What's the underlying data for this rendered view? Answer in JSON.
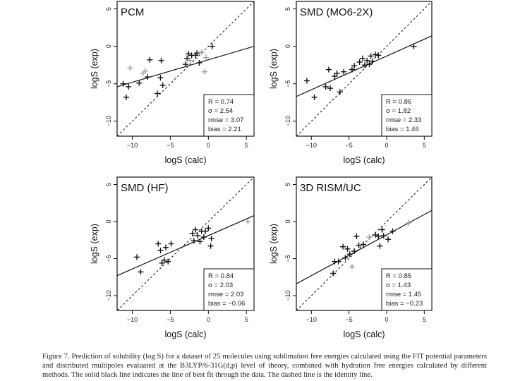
{
  "figure": {
    "caption_label": "Figure 7.",
    "caption_text": "Prediction of solubility (log S) for a dataset of 25 molecules using sublimation free energies calculated using the FIT potential parameters and distributed multipoles evaluated at the B3LYP/6-31G(d,p) level of theory, combined with hydration free energies calculated by different methods. The solid black line indicates the line of best fit through the data. The dashed line is the identity line."
  },
  "chart_data": [
    {
      "type": "scatter",
      "title": "PCM",
      "xlabel": "logS (calc)",
      "ylabel": "logS (exp)",
      "xlim": [
        -12,
        6
      ],
      "ylim": [
        -12,
        6
      ],
      "xticks": [
        -10,
        -5,
        0,
        5
      ],
      "yticks": [
        5,
        0,
        -5,
        -10
      ],
      "fit": {
        "slope": 0.3,
        "intercept": -1.8
      },
      "identity_line": true,
      "stats": [
        {
          "label": "R",
          "value": "0.74"
        },
        {
          "label": "σ",
          "value": "2.54"
        },
        {
          "label": "rmse",
          "value": "3.07"
        },
        {
          "label": "bias",
          "value": "2.21"
        }
      ],
      "points": [
        {
          "x": -11.2,
          "y": -5.0,
          "g": false
        },
        {
          "x": -10.8,
          "y": -6.8,
          "g": false
        },
        {
          "x": -10.5,
          "y": -5.4,
          "g": false
        },
        {
          "x": -10.3,
          "y": -2.9,
          "g": true
        },
        {
          "x": -9.1,
          "y": -4.9,
          "g": false
        },
        {
          "x": -8.6,
          "y": -3.6,
          "g": true
        },
        {
          "x": -8.3,
          "y": -3.3,
          "g": true
        },
        {
          "x": -8.0,
          "y": -4.1,
          "g": false
        },
        {
          "x": -7.7,
          "y": -1.8,
          "g": false
        },
        {
          "x": -6.7,
          "y": -6.3,
          "g": false
        },
        {
          "x": -6.3,
          "y": -4.2,
          "g": false
        },
        {
          "x": -6.2,
          "y": -1.9,
          "g": false
        },
        {
          "x": -6.0,
          "y": -5.2,
          "g": false
        },
        {
          "x": -3.0,
          "y": -2.4,
          "g": false
        },
        {
          "x": -2.8,
          "y": -1.6,
          "g": false
        },
        {
          "x": -2.6,
          "y": -1.0,
          "g": false
        },
        {
          "x": -2.4,
          "y": -1.9,
          "g": true
        },
        {
          "x": -2.2,
          "y": -1.2,
          "g": false
        },
        {
          "x": -1.7,
          "y": -1.2,
          "g": false
        },
        {
          "x": -1.5,
          "y": -0.9,
          "g": false
        },
        {
          "x": -0.9,
          "y": -0.8,
          "g": true
        },
        {
          "x": -0.5,
          "y": -3.4,
          "g": true
        },
        {
          "x": -0.3,
          "y": -1.5,
          "g": true
        },
        {
          "x": 0.5,
          "y": 0.0,
          "g": false
        },
        {
          "x": -1.2,
          "y": -2.2,
          "g": false
        }
      ]
    },
    {
      "type": "scatter",
      "title": "SMD (MO6-2X)",
      "xlabel": "logS (calc)",
      "ylabel": "logS (exp)",
      "xlim": [
        -12,
        6
      ],
      "ylim": [
        -12,
        6
      ],
      "xticks": [
        -10,
        -5,
        0,
        5
      ],
      "yticks": [
        5,
        0,
        -5,
        -10
      ],
      "fit": {
        "slope": 0.45,
        "intercept": -1.3
      },
      "identity_line": true,
      "stats": [
        {
          "label": "R",
          "value": "0.86"
        },
        {
          "label": "σ",
          "value": "1.82"
        },
        {
          "label": "rmse",
          "value": "2.33"
        },
        {
          "label": "bias",
          "value": "1.46"
        }
      ],
      "points": [
        {
          "x": -10.6,
          "y": -4.6,
          "g": false
        },
        {
          "x": -9.6,
          "y": -6.8,
          "g": false
        },
        {
          "x": -8.1,
          "y": -5.4,
          "g": false
        },
        {
          "x": -7.7,
          "y": -3.1,
          "g": false
        },
        {
          "x": -7.5,
          "y": -5.6,
          "g": false
        },
        {
          "x": -6.9,
          "y": -4.0,
          "g": false
        },
        {
          "x": -6.6,
          "y": -3.6,
          "g": false
        },
        {
          "x": -6.2,
          "y": -6.1,
          "g": false
        },
        {
          "x": -5.7,
          "y": -3.4,
          "g": false
        },
        {
          "x": -4.6,
          "y": -3.1,
          "g": false
        },
        {
          "x": -4.3,
          "y": -2.6,
          "g": false
        },
        {
          "x": -3.2,
          "y": -1.6,
          "g": false
        },
        {
          "x": -2.9,
          "y": -2.5,
          "g": false
        },
        {
          "x": -2.6,
          "y": -1.9,
          "g": false
        },
        {
          "x": -2.3,
          "y": -2.4,
          "g": false
        },
        {
          "x": -2.1,
          "y": -1.3,
          "g": false
        },
        {
          "x": -1.9,
          "y": -2.0,
          "g": false
        },
        {
          "x": -1.5,
          "y": -1.1,
          "g": false
        },
        {
          "x": -1.1,
          "y": -1.2,
          "g": false
        },
        {
          "x": 3.6,
          "y": 0.0,
          "g": false
        },
        {
          "x": -3.6,
          "y": -2.1,
          "g": false
        }
      ]
    },
    {
      "type": "scatter",
      "title": "SMD (HF)",
      "xlabel": "logS (calc)",
      "ylabel": "logS (exp)",
      "xlim": [
        -12,
        6
      ],
      "ylim": [
        -12,
        6
      ],
      "xticks": [
        -10,
        -5,
        0,
        5
      ],
      "yticks": [
        5,
        0,
        -5,
        -10
      ],
      "fit": {
        "slope": 0.45,
        "intercept": -1.9
      },
      "identity_line": true,
      "stats": [
        {
          "label": "R",
          "value": "0.84"
        },
        {
          "label": "σ",
          "value": "2.03"
        },
        {
          "label": "rmse",
          "value": "2.03"
        },
        {
          "label": "bias",
          "value": "−0.06"
        }
      ],
      "points": [
        {
          "x": -9.4,
          "y": -4.8,
          "g": false
        },
        {
          "x": -8.9,
          "y": -6.8,
          "g": false
        },
        {
          "x": -6.6,
          "y": -3.0,
          "g": false
        },
        {
          "x": -6.3,
          "y": -3.9,
          "g": false
        },
        {
          "x": -6.1,
          "y": -5.6,
          "g": false
        },
        {
          "x": -5.8,
          "y": -5.2,
          "g": false
        },
        {
          "x": -5.6,
          "y": -3.5,
          "g": false
        },
        {
          "x": -5.3,
          "y": -5.4,
          "g": false
        },
        {
          "x": -4.9,
          "y": -3.0,
          "g": false
        },
        {
          "x": -2.1,
          "y": -1.6,
          "g": false
        },
        {
          "x": -1.9,
          "y": -2.6,
          "g": false
        },
        {
          "x": -1.7,
          "y": -1.1,
          "g": false
        },
        {
          "x": -1.4,
          "y": -1.9,
          "g": false
        },
        {
          "x": -0.9,
          "y": -1.3,
          "g": false
        },
        {
          "x": -0.6,
          "y": -2.1,
          "g": false
        },
        {
          "x": -0.4,
          "y": -1.3,
          "g": false
        },
        {
          "x": 0.0,
          "y": -0.9,
          "g": false
        },
        {
          "x": 0.3,
          "y": -3.3,
          "g": false
        },
        {
          "x": 0.4,
          "y": -2.3,
          "g": false
        },
        {
          "x": 5.2,
          "y": 0.0,
          "g": true
        },
        {
          "x": -1.1,
          "y": -2.7,
          "g": false
        }
      ]
    },
    {
      "type": "scatter",
      "title": "3D RISM/UC",
      "xlabel": "logS (calc)",
      "ylabel": "logS (exp)",
      "xlim": [
        -12,
        6
      ],
      "ylim": [
        -12,
        6
      ],
      "xticks": [
        -10,
        -5,
        0,
        5
      ],
      "yticks": [
        5,
        0,
        -5,
        -10
      ],
      "fit": {
        "slope": 0.55,
        "intercept": -1.8
      },
      "identity_line": true,
      "stats": [
        {
          "label": "R",
          "value": "0.85"
        },
        {
          "label": "σ",
          "value": "1.43"
        },
        {
          "label": "rmse",
          "value": "1.45"
        },
        {
          "label": "bias",
          "value": "−0.23"
        }
      ],
      "points": [
        {
          "x": -7.1,
          "y": -7.0,
          "g": false
        },
        {
          "x": -6.9,
          "y": -5.4,
          "g": false
        },
        {
          "x": -6.4,
          "y": -5.4,
          "g": false
        },
        {
          "x": -5.8,
          "y": -3.4,
          "g": false
        },
        {
          "x": -5.5,
          "y": -4.9,
          "g": false
        },
        {
          "x": -5.2,
          "y": -3.7,
          "g": false
        },
        {
          "x": -4.9,
          "y": -4.4,
          "g": false
        },
        {
          "x": -4.6,
          "y": -6.1,
          "g": true
        },
        {
          "x": -4.3,
          "y": -4.0,
          "g": false
        },
        {
          "x": -4.0,
          "y": -2.0,
          "g": false
        },
        {
          "x": -3.7,
          "y": -3.2,
          "g": false
        },
        {
          "x": -3.1,
          "y": -3.1,
          "g": false
        },
        {
          "x": -2.3,
          "y": -2.1,
          "g": true
        },
        {
          "x": -1.5,
          "y": -1.8,
          "g": false
        },
        {
          "x": -1.1,
          "y": -2.0,
          "g": false
        },
        {
          "x": -0.9,
          "y": -3.3,
          "g": false
        },
        {
          "x": -0.6,
          "y": -1.1,
          "g": false
        },
        {
          "x": -0.4,
          "y": -1.9,
          "g": false
        },
        {
          "x": 0.2,
          "y": -2.4,
          "g": false
        },
        {
          "x": 0.8,
          "y": -1.3,
          "g": false
        },
        {
          "x": 2.9,
          "y": -0.2,
          "g": true
        }
      ]
    }
  ]
}
